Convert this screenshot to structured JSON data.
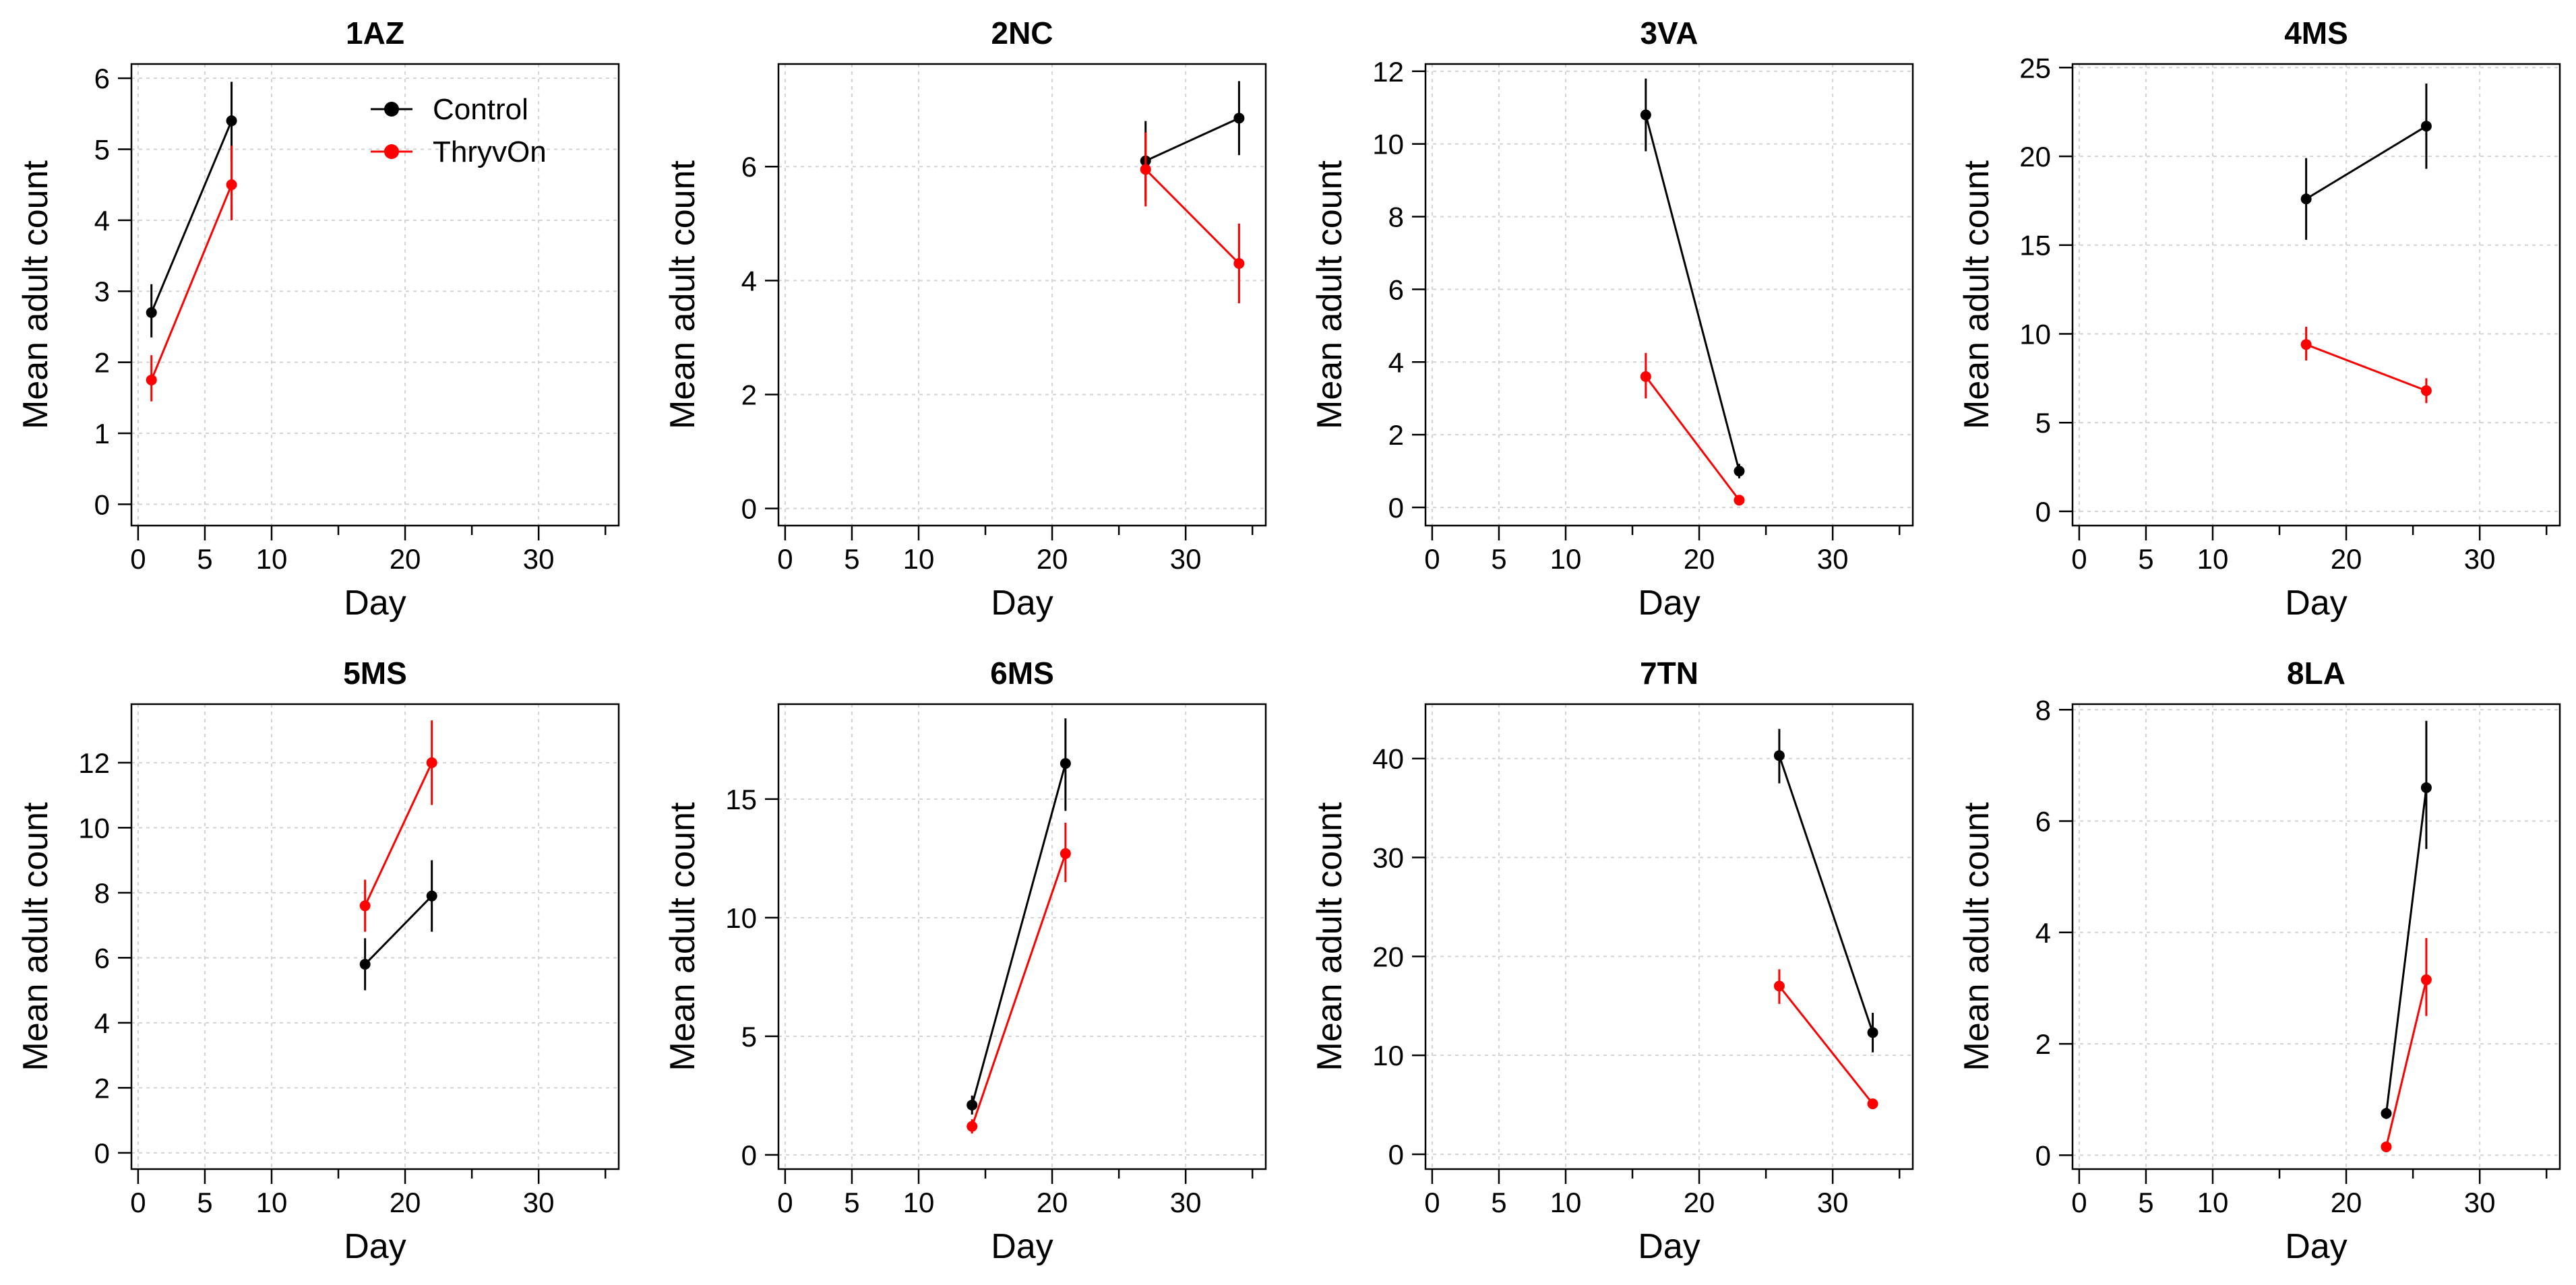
{
  "legend": {
    "position": "top-right of first panel",
    "entries": [
      {
        "name": "Control",
        "color": "#000000"
      },
      {
        "name": "ThryvOn",
        "color": "#ff0000"
      }
    ]
  },
  "chart_data": [
    {
      "type": "line",
      "title": "1AZ",
      "xlabel": "Day",
      "ylabel": "Mean adult count",
      "xlim": [
        -0.5,
        36
      ],
      "ylim": [
        -0.3,
        6.2
      ],
      "grid": true,
      "xticks": [
        0,
        5,
        10,
        20,
        30
      ],
      "yticks": [
        0,
        1,
        2,
        3,
        4,
        5,
        6
      ],
      "series": [
        {
          "name": "Control",
          "color": "#000000",
          "points": [
            {
              "x": 1,
              "y": 2.7,
              "lo": 2.35,
              "hi": 3.1
            },
            {
              "x": 7,
              "y": 5.4,
              "lo": 4.85,
              "hi": 5.95
            }
          ]
        },
        {
          "name": "ThryvOn",
          "color": "#ff0000",
          "points": [
            {
              "x": 1,
              "y": 1.75,
              "lo": 1.45,
              "hi": 2.1
            },
            {
              "x": 7,
              "y": 4.5,
              "lo": 4.0,
              "hi": 5.05
            }
          ]
        }
      ]
    },
    {
      "type": "line",
      "title": "2NC",
      "xlabel": "Day",
      "ylabel": "Mean adult count",
      "xlim": [
        -0.5,
        36
      ],
      "ylim": [
        -0.3,
        7.8
      ],
      "grid": true,
      "xticks": [
        0,
        5,
        10,
        20,
        30
      ],
      "yticks": [
        0,
        2,
        4,
        6
      ],
      "series": [
        {
          "name": "Control",
          "color": "#000000",
          "points": [
            {
              "x": 27,
              "y": 6.1,
              "lo": 5.4,
              "hi": 6.8
            },
            {
              "x": 34,
              "y": 6.85,
              "lo": 6.2,
              "hi": 7.5
            }
          ]
        },
        {
          "name": "ThryvOn",
          "color": "#ff0000",
          "points": [
            {
              "x": 27,
              "y": 5.95,
              "lo": 5.3,
              "hi": 6.6
            },
            {
              "x": 34,
              "y": 4.3,
              "lo": 3.6,
              "hi": 5.0
            }
          ]
        }
      ]
    },
    {
      "type": "line",
      "title": "3VA",
      "xlabel": "Day",
      "ylabel": "Mean adult count",
      "xlim": [
        -0.5,
        36
      ],
      "ylim": [
        -0.5,
        12.2
      ],
      "grid": true,
      "xticks": [
        0,
        5,
        10,
        20,
        30
      ],
      "yticks": [
        0,
        2,
        4,
        6,
        8,
        10,
        12
      ],
      "series": [
        {
          "name": "Control",
          "color": "#000000",
          "points": [
            {
              "x": 16,
              "y": 10.8,
              "lo": 9.8,
              "hi": 11.8
            },
            {
              "x": 23,
              "y": 1.0,
              "lo": 0.8,
              "hi": 1.2
            }
          ]
        },
        {
          "name": "ThryvOn",
          "color": "#ff0000",
          "points": [
            {
              "x": 16,
              "y": 3.6,
              "lo": 3.0,
              "hi": 4.25
            },
            {
              "x": 23,
              "y": 0.2,
              "lo": 0.1,
              "hi": 0.3
            }
          ]
        }
      ]
    },
    {
      "type": "line",
      "title": "4MS",
      "xlabel": "Day",
      "ylabel": "Mean adult count",
      "xlim": [
        -0.5,
        36
      ],
      "ylim": [
        -0.8,
        25.2
      ],
      "grid": true,
      "xticks": [
        0,
        5,
        10,
        20,
        30
      ],
      "yticks": [
        0,
        5,
        10,
        15,
        20,
        25
      ],
      "series": [
        {
          "name": "Control",
          "color": "#000000",
          "points": [
            {
              "x": 17,
              "y": 17.6,
              "lo": 15.3,
              "hi": 19.9
            },
            {
              "x": 26,
              "y": 21.7,
              "lo": 19.3,
              "hi": 24.1
            }
          ]
        },
        {
          "name": "ThryvOn",
          "color": "#ff0000",
          "points": [
            {
              "x": 17,
              "y": 9.4,
              "lo": 8.5,
              "hi": 10.4
            },
            {
              "x": 26,
              "y": 6.8,
              "lo": 6.1,
              "hi": 7.5
            }
          ]
        }
      ]
    },
    {
      "type": "line",
      "title": "5MS",
      "xlabel": "Day",
      "ylabel": "Mean adult count",
      "xlim": [
        -0.5,
        36
      ],
      "ylim": [
        -0.5,
        13.8
      ],
      "grid": true,
      "xticks": [
        0,
        5,
        10,
        20,
        30
      ],
      "yticks": [
        0,
        2,
        4,
        6,
        8,
        10,
        12
      ],
      "series": [
        {
          "name": "Control",
          "color": "#000000",
          "points": [
            {
              "x": 17,
              "y": 5.8,
              "lo": 5.0,
              "hi": 6.6
            },
            {
              "x": 22,
              "y": 7.9,
              "lo": 6.8,
              "hi": 9.0
            }
          ]
        },
        {
          "name": "ThryvOn",
          "color": "#ff0000",
          "points": [
            {
              "x": 17,
              "y": 7.6,
              "lo": 6.8,
              "hi": 8.4
            },
            {
              "x": 22,
              "y": 12.0,
              "lo": 10.7,
              "hi": 13.3
            }
          ]
        }
      ]
    },
    {
      "type": "line",
      "title": "6MS",
      "xlabel": "Day",
      "ylabel": "Mean adult count",
      "xlim": [
        -0.5,
        36
      ],
      "ylim": [
        -0.6,
        19.0
      ],
      "grid": true,
      "xticks": [
        0,
        5,
        10,
        20,
        30
      ],
      "yticks": [
        0,
        5,
        10,
        15
      ],
      "series": [
        {
          "name": "Control",
          "color": "#000000",
          "points": [
            {
              "x": 14,
              "y": 2.1,
              "lo": 1.7,
              "hi": 2.5
            },
            {
              "x": 21,
              "y": 16.5,
              "lo": 14.5,
              "hi": 18.4
            }
          ]
        },
        {
          "name": "ThryvOn",
          "color": "#ff0000",
          "points": [
            {
              "x": 14,
              "y": 1.2,
              "lo": 0.9,
              "hi": 1.5
            },
            {
              "x": 21,
              "y": 12.7,
              "lo": 11.5,
              "hi": 14.0
            }
          ]
        }
      ]
    },
    {
      "type": "line",
      "title": "7TN",
      "xlabel": "Day",
      "ylabel": "Mean adult count",
      "xlim": [
        -0.5,
        36
      ],
      "ylim": [
        -1.5,
        45.5
      ],
      "grid": true,
      "xticks": [
        0,
        5,
        10,
        20,
        30
      ],
      "yticks": [
        0,
        10,
        20,
        30,
        40
      ],
      "series": [
        {
          "name": "Control",
          "color": "#000000",
          "points": [
            {
              "x": 26,
              "y": 40.3,
              "lo": 37.5,
              "hi": 43.0
            },
            {
              "x": 33,
              "y": 12.3,
              "lo": 10.3,
              "hi": 14.3
            }
          ]
        },
        {
          "name": "ThryvOn",
          "color": "#ff0000",
          "points": [
            {
              "x": 26,
              "y": 17.0,
              "lo": 15.2,
              "hi": 18.7
            },
            {
              "x": 33,
              "y": 5.1,
              "lo": 4.6,
              "hi": 5.6
            }
          ]
        }
      ]
    },
    {
      "type": "line",
      "title": "8LA",
      "xlabel": "Day",
      "ylabel": "Mean adult count",
      "xlim": [
        -0.5,
        36
      ],
      "ylim": [
        -0.25,
        8.1
      ],
      "grid": true,
      "xticks": [
        0,
        5,
        10,
        20,
        30
      ],
      "yticks": [
        0,
        2,
        4,
        6,
        8
      ],
      "series": [
        {
          "name": "Control",
          "color": "#000000",
          "points": [
            {
              "x": 23,
              "y": 0.75,
              "lo": 0.65,
              "hi": 0.85
            },
            {
              "x": 26,
              "y": 6.6,
              "lo": 5.5,
              "hi": 7.8
            }
          ]
        },
        {
          "name": "ThryvOn",
          "color": "#ff0000",
          "points": [
            {
              "x": 23,
              "y": 0.15,
              "lo": 0.1,
              "hi": 0.2
            },
            {
              "x": 26,
              "y": 3.15,
              "lo": 2.5,
              "hi": 3.9
            }
          ]
        }
      ]
    }
  ]
}
